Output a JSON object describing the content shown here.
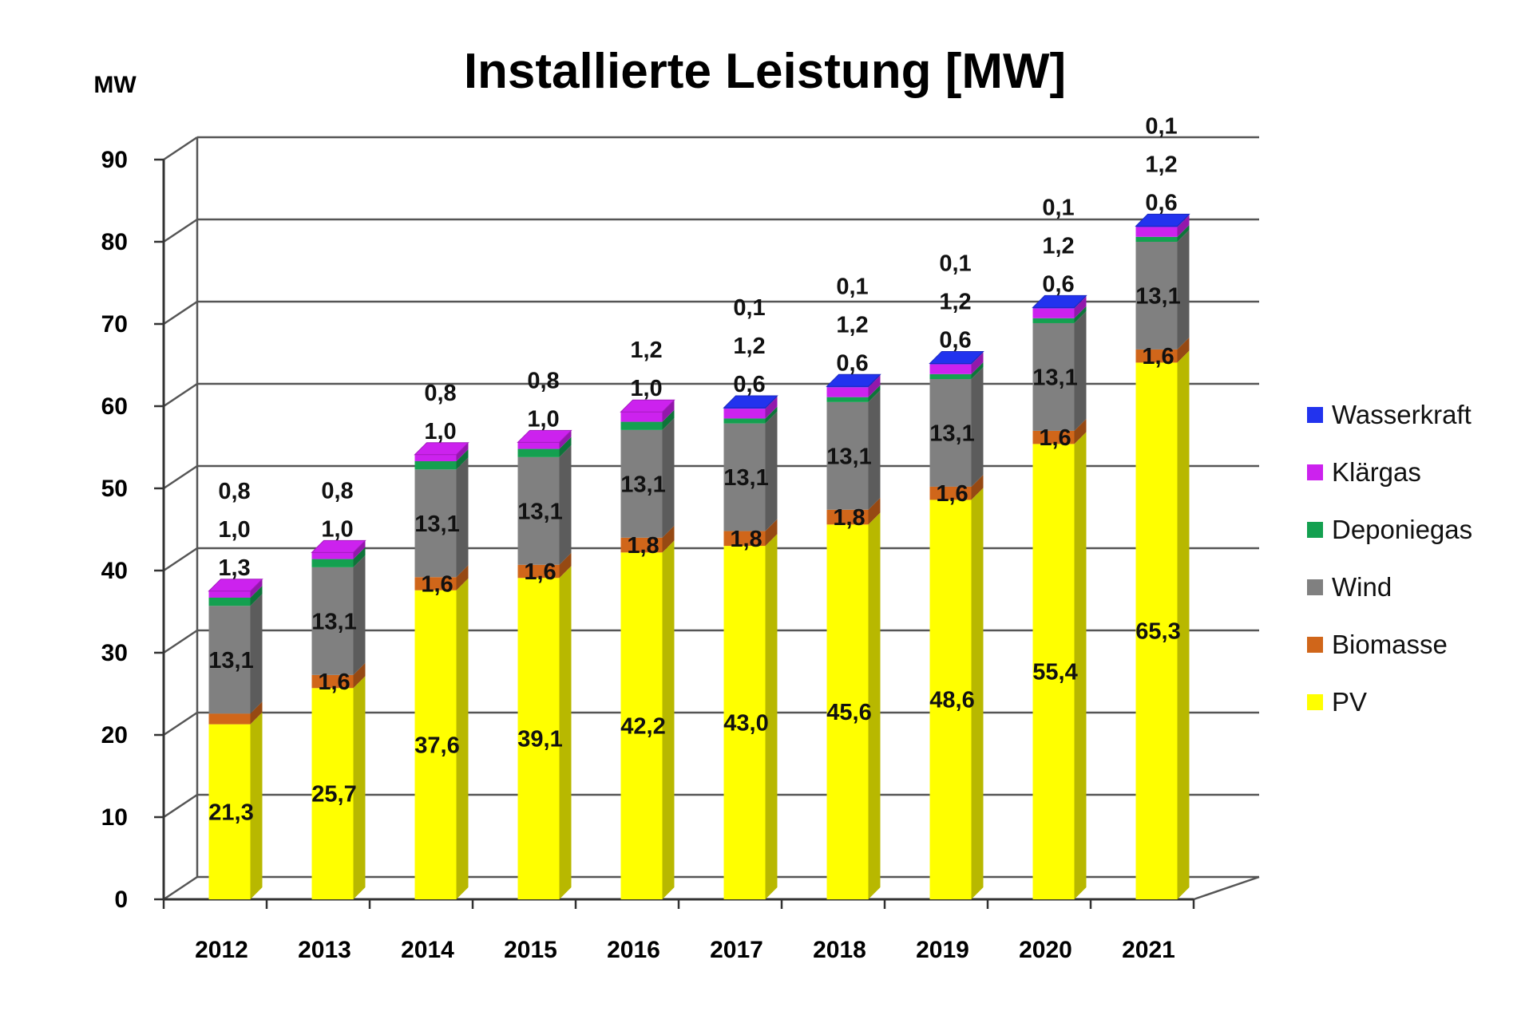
{
  "chart_data": {
    "type": "bar",
    "stacked": true,
    "three_d": true,
    "title": "Installierte Leistung [MW]",
    "ylabel": "MW",
    "ylim": [
      0,
      90
    ],
    "yticks": [
      0,
      10,
      20,
      30,
      40,
      50,
      60,
      70,
      80,
      90
    ],
    "grid": true,
    "legend_position": "right",
    "categories": [
      "2012",
      "2013",
      "2014",
      "2015",
      "2016",
      "2017",
      "2018",
      "2019",
      "2020",
      "2021"
    ],
    "series": [
      {
        "name": "PV",
        "color": "#ffff00",
        "values": [
          21.3,
          25.7,
          37.6,
          39.1,
          42.2,
          43.0,
          45.6,
          48.6,
          55.4,
          65.3
        ],
        "labels": [
          "21,3",
          "25,7",
          "37,6",
          "39,1",
          "42,2",
          "43,0",
          "45,6",
          "48,6",
          "55,4",
          "65,3"
        ]
      },
      {
        "name": "Biomasse",
        "color": "#d0661a",
        "values": [
          1.3,
          1.6,
          1.6,
          1.6,
          1.8,
          1.8,
          1.8,
          1.6,
          1.6,
          1.6
        ],
        "labels": [
          "1,3",
          "1,6",
          "1,6",
          "1,6",
          "1,8",
          "1,8",
          "1,8",
          "1,6",
          "1,6",
          "1,6"
        ]
      },
      {
        "name": "Wind",
        "color": "#808080",
        "values": [
          13.1,
          13.1,
          13.1,
          13.1,
          13.1,
          13.1,
          13.1,
          13.1,
          13.1,
          13.1
        ],
        "labels": [
          "13,1",
          "13,1",
          "13,1",
          "13,1",
          "13,1",
          "13,1",
          "13,1",
          "13,1",
          "13,1",
          "13,1"
        ]
      },
      {
        "name": "Deponiegas",
        "color": "#14a050",
        "values": [
          1.0,
          1.0,
          1.0,
          1.0,
          1.0,
          0.6,
          0.6,
          0.6,
          0.6,
          0.6
        ],
        "labels": [
          "1,0",
          "1,0",
          "1,0",
          "1,0",
          "1,0",
          "0,6",
          "0,6",
          "0,6",
          "0,6",
          "0,6"
        ]
      },
      {
        "name": "Klärgas",
        "color": "#cc22ee",
        "values": [
          0.8,
          0.8,
          0.8,
          0.8,
          1.2,
          1.2,
          1.2,
          1.2,
          1.2,
          1.2
        ],
        "labels": [
          "0,8",
          "0,8",
          "0,8",
          "0,8",
          "1,2",
          "1,2",
          "1,2",
          "1,2",
          "1,2",
          "1,2"
        ]
      },
      {
        "name": "Wasserkraft",
        "color": "#2233ee",
        "values": [
          0,
          0,
          0,
          0,
          0,
          0.1,
          0.1,
          0.1,
          0.1,
          0.1
        ],
        "labels": [
          "",
          "",
          "",
          "",
          "",
          "0,1",
          "0,1",
          "0,1",
          "0,1",
          "0,1"
        ]
      }
    ]
  }
}
